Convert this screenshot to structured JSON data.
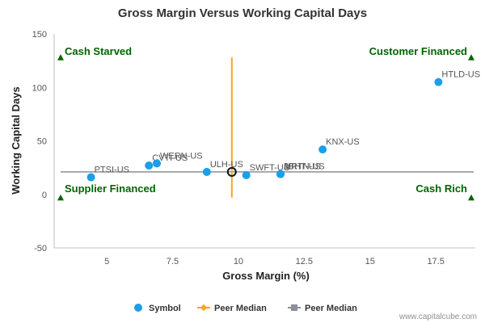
{
  "chart_data": {
    "type": "scatter",
    "title": "Gross Margin Versus Working Capital Days",
    "xlabel": "Gross Margin (%)",
    "ylabel": "Working Capital Days",
    "xlim": [
      3,
      19
    ],
    "ylim": [
      -50,
      150
    ],
    "xticks": [
      5,
      7.5,
      10,
      12.5,
      15,
      17.5
    ],
    "yticks": [
      -50,
      0,
      50,
      100,
      150
    ],
    "grid": false,
    "points": [
      {
        "label": "PTSI-US",
        "x": 4.4,
        "y": 16
      },
      {
        "label": "CVTI-US",
        "x": 6.6,
        "y": 27
      },
      {
        "label": "WERN-US",
        "x": 6.9,
        "y": 29
      },
      {
        "label": "ULH-US",
        "x": 8.8,
        "y": 21
      },
      {
        "label": "SWFT-US",
        "x": 10.3,
        "y": 18
      },
      {
        "label": "MRTN-US",
        "x": 11.6,
        "y": 19
      },
      {
        "label": "JBHT-US",
        "x": 11.6,
        "y": 19
      },
      {
        "label": "KNX-US",
        "x": 13.2,
        "y": 42
      },
      {
        "label": "HTLD-US",
        "x": 17.6,
        "y": 105
      }
    ],
    "peer_median": {
      "x": 9.75,
      "y": 21
    },
    "quadrants": {
      "top_left": "Cash Starved",
      "top_right": "Customer Financed",
      "bottom_left": "Supplier Financed",
      "bottom_right": "Cash Rich"
    },
    "legend": {
      "position": "bottom-center",
      "items": [
        "Symbol",
        "Peer Median",
        "Peer Median"
      ]
    },
    "colors": {
      "points": "#1a9fe8",
      "peer_median_v": "#f5a623",
      "peer_median_h": "#8a8f98",
      "quadrant": "#006400",
      "marker": "#111111"
    }
  },
  "credit": "www.capitalcube.com"
}
